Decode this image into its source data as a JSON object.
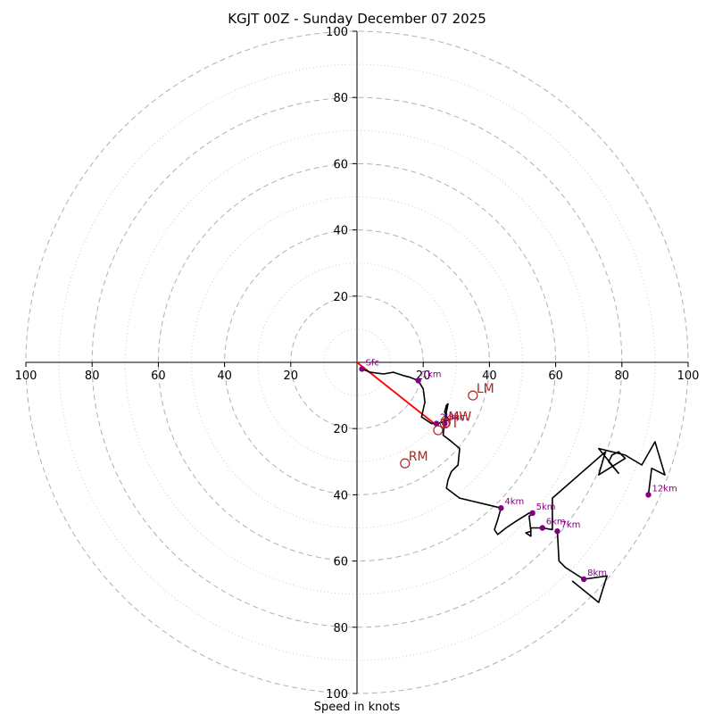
{
  "chart_data": {
    "type": "hodograph",
    "title": "KGJT 00Z - Sunday December 07 2025",
    "xlabel": "Speed in knots",
    "units": "knots",
    "rings": [
      20,
      40,
      60,
      80,
      100
    ],
    "minor_rings": [
      10,
      30,
      50,
      70,
      90
    ],
    "axis_ticks": [
      20,
      40,
      60,
      80,
      100
    ],
    "axis_range": [
      -100,
      100
    ],
    "trace": [
      [
        1.5,
        -2
      ],
      [
        4,
        -3
      ],
      [
        8,
        -3.5
      ],
      [
        11,
        -3
      ],
      [
        14,
        -4
      ],
      [
        16,
        -4.5
      ],
      [
        18.5,
        -5.5
      ],
      [
        20,
        -8
      ],
      [
        20.5,
        -12
      ],
      [
        19.5,
        -16.5
      ],
      [
        22.5,
        -18.5
      ],
      [
        24,
        -18.5
      ],
      [
        26,
        -18
      ],
      [
        27.5,
        -17.5
      ],
      [
        26.5,
        -15
      ],
      [
        27,
        -13
      ],
      [
        27.5,
        -12.5
      ],
      [
        26.5,
        -17.5
      ],
      [
        26,
        -22
      ],
      [
        28,
        -23.5
      ],
      [
        31,
        -26
      ],
      [
        30.5,
        -31
      ],
      [
        28.5,
        -33
      ],
      [
        27.5,
        -35.5
      ],
      [
        27,
        -38
      ],
      [
        31,
        -41
      ],
      [
        43.5,
        -44
      ],
      [
        42.5,
        -47.5
      ],
      [
        41.5,
        -50.5
      ],
      [
        42.5,
        -52
      ],
      [
        45,
        -50
      ],
      [
        48,
        -48
      ],
      [
        52,
        -45.5
      ],
      [
        53,
        -45.5
      ],
      [
        52,
        -46.5
      ],
      [
        52.5,
        -51
      ],
      [
        51,
        -51.5
      ],
      [
        52.5,
        -52.5
      ],
      [
        52.5,
        -50
      ],
      [
        56,
        -50
      ],
      [
        59,
        -50.5
      ],
      [
        59,
        -41
      ],
      [
        75,
        -27
      ],
      [
        73,
        -34
      ],
      [
        81,
        -29
      ],
      [
        79,
        -27
      ],
      [
        77,
        -28
      ],
      [
        76,
        -30
      ],
      [
        79,
        -33.5
      ],
      [
        73,
        -26
      ],
      [
        81,
        -28
      ],
      [
        86,
        -31
      ],
      [
        90,
        -24
      ],
      [
        93,
        -34
      ],
      [
        89,
        -32
      ],
      [
        88,
        -40
      ]
    ],
    "lower_trace": [
      [
        60.5,
        -51
      ],
      [
        61,
        -60
      ],
      [
        63,
        -62
      ],
      [
        68.5,
        -65.5
      ],
      [
        75.5,
        -64.5
      ],
      [
        73,
        -72.5
      ],
      [
        65,
        -66
      ]
    ],
    "height_markers": [
      {
        "label": "Sfc",
        "u": 1.5,
        "v": -2
      },
      {
        "label": "1km",
        "u": 18.5,
        "v": -5.5
      },
      {
        "label": "2km",
        "u": 24,
        "v": -18.5
      },
      {
        "label": "3km",
        "u": 26.5,
        "v": -18.5
      },
      {
        "label": "4km",
        "u": 43.5,
        "v": -44
      },
      {
        "label": "5km",
        "u": 53,
        "v": -45.5
      },
      {
        "label": "6km",
        "u": 56,
        "v": -50
      },
      {
        "label": "7km",
        "u": 60.5,
        "v": -51
      },
      {
        "label": "8km",
        "u": 68.5,
        "v": -65.5
      },
      {
        "label": "12km",
        "u": 88,
        "v": -40
      }
    ],
    "storm_motion": [
      {
        "label": "LM",
        "u": 35,
        "v": -10
      },
      {
        "label": "RM",
        "u": 14.5,
        "v": -30.5
      },
      {
        "label": "MW",
        "u": 26.5,
        "v": -18.5
      },
      {
        "label": "DT",
        "u": 24.5,
        "v": -20.5
      }
    ],
    "shear_vector": {
      "from": [
        0,
        0
      ],
      "to": [
        24,
        -19
      ]
    },
    "colors": {
      "trace": "#000000",
      "markers": "#800080",
      "storm": "#b22222",
      "shear": "#ff0000",
      "rings": "#b0b0b0"
    }
  }
}
